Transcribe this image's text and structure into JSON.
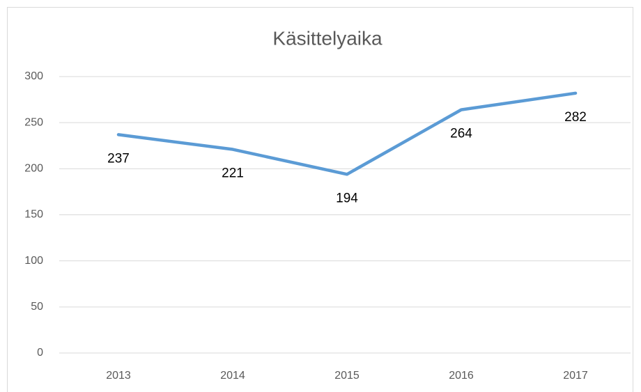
{
  "chart_data": {
    "type": "line",
    "title": "Käsittelyaika",
    "categories": [
      "2013",
      "2014",
      "2015",
      "2016",
      "2017"
    ],
    "series": [
      {
        "name": "Käsittelyaika",
        "color": "#5b9bd5",
        "values": [
          237,
          221,
          194,
          264,
          282
        ]
      }
    ],
    "ylim": [
      0,
      300
    ],
    "yticks": [
      0,
      50,
      100,
      150,
      200,
      250,
      300
    ],
    "grid": true
  }
}
